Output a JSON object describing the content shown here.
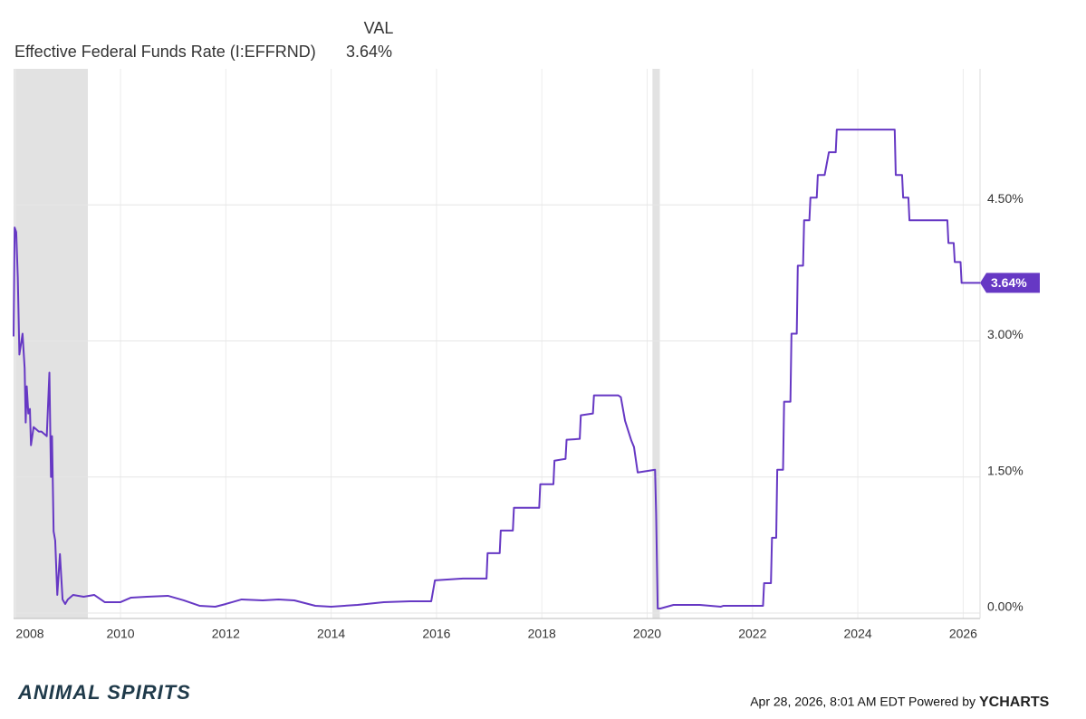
{
  "chart_data": {
    "type": "line",
    "legend_header": "VAL",
    "legend_value": "3.64%",
    "series": [
      {
        "name": "Effective Federal Funds Rate (I:EFFRND)",
        "color": "#6638c4",
        "x": [
          2007.97,
          2007.99,
          2008.02,
          2008.05,
          2008.08,
          2008.12,
          2008.14,
          2008.18,
          2008.2,
          2008.22,
          2008.25,
          2008.28,
          2008.3,
          2008.35,
          2008.45,
          2008.5,
          2008.6,
          2008.65,
          2008.68,
          2008.7,
          2008.73,
          2008.76,
          2008.8,
          2008.85,
          2008.9,
          2008.95,
          2009.0,
          2009.1,
          2009.3,
          2009.5,
          2009.7,
          2010.0,
          2010.2,
          2010.5,
          2010.9,
          2011.2,
          2011.5,
          2011.8,
          2012.0,
          2012.3,
          2012.7,
          2013.0,
          2013.3,
          2013.7,
          2014.0,
          2014.5,
          2015.0,
          2015.5,
          2015.9,
          2015.97,
          2016.5,
          2016.95,
          2016.97,
          2017.2,
          2017.22,
          2017.45,
          2017.47,
          2017.95,
          2017.97,
          2018.22,
          2018.24,
          2018.45,
          2018.47,
          2018.72,
          2018.74,
          2018.97,
          2018.99,
          2019.45,
          2019.5,
          2019.58,
          2019.7,
          2019.75,
          2019.82,
          2020.15,
          2020.17,
          2020.2,
          2020.25,
          2020.5,
          2021.0,
          2021.4,
          2021.45,
          2022.2,
          2022.22,
          2022.35,
          2022.37,
          2022.45,
          2022.47,
          2022.58,
          2022.6,
          2022.72,
          2022.74,
          2022.84,
          2022.86,
          2022.96,
          2022.98,
          2023.08,
          2023.1,
          2023.22,
          2023.24,
          2023.37,
          2023.45,
          2023.58,
          2023.6,
          2024.7,
          2024.72,
          2024.84,
          2024.86,
          2024.96,
          2024.98,
          2025.7,
          2025.72,
          2025.82,
          2025.84,
          2025.95,
          2025.97,
          2026.32
        ],
        "values": [
          3.05,
          4.25,
          4.2,
          3.7,
          2.85,
          3.0,
          3.08,
          2.7,
          2.1,
          2.5,
          2.2,
          2.25,
          1.85,
          2.05,
          2.0,
          2.0,
          1.95,
          2.65,
          1.5,
          1.95,
          0.9,
          0.8,
          0.2,
          0.65,
          0.15,
          0.1,
          0.15,
          0.2,
          0.18,
          0.2,
          0.12,
          0.12,
          0.17,
          0.18,
          0.19,
          0.14,
          0.08,
          0.07,
          0.1,
          0.15,
          0.14,
          0.15,
          0.14,
          0.08,
          0.07,
          0.09,
          0.12,
          0.13,
          0.13,
          0.36,
          0.38,
          0.38,
          0.66,
          0.66,
          0.91,
          0.91,
          1.16,
          1.16,
          1.42,
          1.42,
          1.68,
          1.7,
          1.91,
          1.92,
          2.18,
          2.2,
          2.4,
          2.4,
          2.38,
          2.12,
          1.9,
          1.83,
          1.55,
          1.58,
          1.1,
          0.05,
          0.05,
          0.09,
          0.09,
          0.07,
          0.08,
          0.08,
          0.33,
          0.33,
          0.83,
          0.83,
          1.58,
          1.58,
          2.33,
          2.33,
          3.08,
          3.08,
          3.83,
          3.83,
          4.33,
          4.33,
          4.58,
          4.58,
          4.83,
          4.83,
          5.08,
          5.08,
          5.33,
          5.33,
          4.83,
          4.83,
          4.58,
          4.58,
          4.33,
          4.33,
          4.08,
          4.08,
          3.87,
          3.87,
          3.64,
          3.64
        ]
      }
    ],
    "end_label": {
      "value": 3.64,
      "label": "3.64%"
    },
    "recessions": [
      [
        2007.97,
        2009.38
      ],
      [
        2020.1,
        2020.24
      ]
    ],
    "xlim": [
      2007.97,
      2026.32
    ],
    "xticks": [
      2008,
      2010,
      2012,
      2014,
      2016,
      2018,
      2020,
      2022,
      2024,
      2026
    ],
    "ylim": [
      -0.06,
      6.0
    ],
    "yticks": [
      {
        "value": 0,
        "label": "0.00%"
      },
      {
        "value": 1.5,
        "label": "1.50%"
      },
      {
        "value": 3,
        "label": "3.00%"
      },
      {
        "value": 4.5,
        "label": "4.50%"
      }
    ],
    "grid": true,
    "footer_date": "Apr 28, 2026, 8:01 AM EDT Powered by",
    "footer_brand": "YCHARTS",
    "logo": "ANIMAL SPIRITS"
  }
}
